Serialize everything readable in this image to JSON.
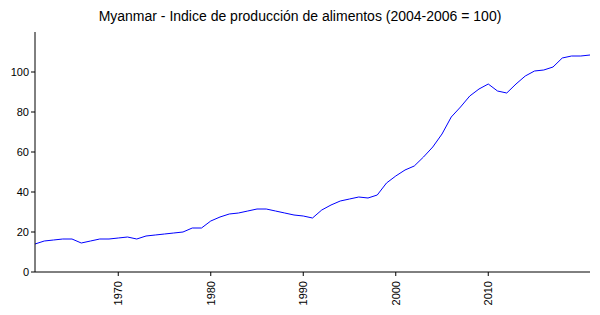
{
  "chart_data": {
    "type": "line",
    "title": "Myanmar - Indice de producción de alimentos (2004-2006 = 100)",
    "x": [
      1961,
      1962,
      1963,
      1964,
      1965,
      1966,
      1967,
      1968,
      1969,
      1970,
      1971,
      1972,
      1973,
      1974,
      1975,
      1976,
      1977,
      1978,
      1979,
      1980,
      1981,
      1982,
      1983,
      1984,
      1985,
      1986,
      1987,
      1988,
      1989,
      1990,
      1991,
      1992,
      1993,
      1994,
      1995,
      1996,
      1997,
      1998,
      1999,
      2000,
      2001,
      2002,
      2003,
      2004,
      2005,
      2006,
      2007,
      2008,
      2009,
      2010,
      2011,
      2012,
      2013,
      2014,
      2015,
      2016,
      2017,
      2018,
      2019,
      2020,
      2021
    ],
    "values": [
      14,
      15.5,
      16,
      16.5,
      16.5,
      14.5,
      15.5,
      16.5,
      16.5,
      17,
      17.5,
      16.5,
      18,
      18.5,
      19,
      19.5,
      20,
      22,
      22,
      25.5,
      27.5,
      29,
      29.5,
      30.5,
      31.5,
      31.5,
      30.5,
      29.5,
      28.5,
      28,
      27,
      31,
      33.5,
      35.5,
      36.5,
      37.5,
      37,
      38.5,
      44.5,
      48,
      51,
      53,
      57.5,
      62.5,
      69,
      77.5,
      82.5,
      88,
      91.5,
      94,
      90.5,
      89.5,
      94,
      98,
      100.5,
      101,
      102.5,
      107,
      108,
      108,
      108.5
    ],
    "color": "#0000ff",
    "xlim": [
      1961,
      2021
    ],
    "ylim": [
      0,
      120
    ],
    "xticks": [
      1970,
      1980,
      1990,
      2000,
      2010
    ],
    "yticks": [
      0,
      20,
      40,
      60,
      80,
      100
    ],
    "grid": false
  }
}
